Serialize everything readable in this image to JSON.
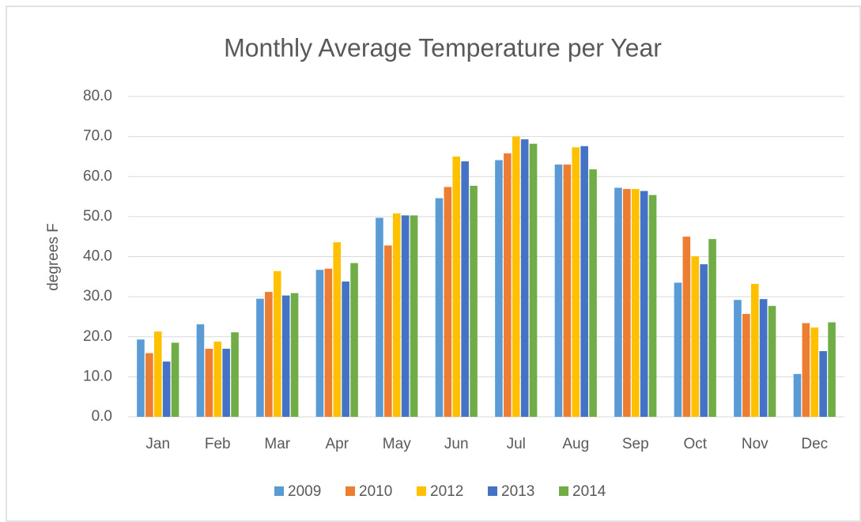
{
  "chart_data": {
    "type": "bar",
    "title": "Monthly Average Temperature per Year",
    "y_label": "degrees F",
    "categories": [
      "Jan",
      "Feb",
      "Mar",
      "Apr",
      "May",
      "Jun",
      "Jul",
      "Aug",
      "Sep",
      "Oct",
      "Nov",
      "Dec"
    ],
    "series": [
      {
        "name": "2009",
        "color": "#5b9bd5",
        "values": [
          19.3,
          23.1,
          29.5,
          36.7,
          49.7,
          54.6,
          64.1,
          63.0,
          57.2,
          33.5,
          29.2,
          10.7
        ]
      },
      {
        "name": "2010",
        "color": "#ed7d31",
        "values": [
          15.9,
          17.0,
          31.2,
          37.0,
          42.8,
          57.4,
          65.8,
          63.0,
          56.9,
          45.0,
          25.7,
          23.4
        ]
      },
      {
        "name": "2012",
        "color": "#ffc000",
        "values": [
          21.3,
          18.8,
          36.4,
          43.6,
          50.8,
          65.0,
          70.0,
          67.3,
          56.9,
          40.1,
          33.2,
          22.3
        ]
      },
      {
        "name": "2013",
        "color": "#4472c4",
        "values": [
          13.8,
          17.0,
          30.3,
          33.8,
          50.3,
          63.8,
          69.3,
          67.6,
          56.4,
          38.1,
          29.4,
          16.4
        ]
      },
      {
        "name": "2014",
        "color": "#70ad47",
        "values": [
          18.5,
          21.1,
          30.9,
          38.4,
          50.3,
          57.7,
          68.2,
          61.8,
          55.4,
          44.4,
          27.7,
          23.6
        ]
      }
    ],
    "ylim": [
      0,
      80
    ],
    "yticks": [
      {
        "value": 0,
        "label": "0.0"
      },
      {
        "value": 10,
        "label": "10.0"
      },
      {
        "value": 20,
        "label": "20.0"
      },
      {
        "value": 30,
        "label": "30.0"
      },
      {
        "value": 40,
        "label": "40.0"
      },
      {
        "value": 50,
        "label": "50.0"
      },
      {
        "value": 60,
        "label": "60.0"
      },
      {
        "value": 70,
        "label": "70.0"
      },
      {
        "value": 80,
        "label": "80.0"
      }
    ],
    "grid": true,
    "legend": "bottom"
  }
}
